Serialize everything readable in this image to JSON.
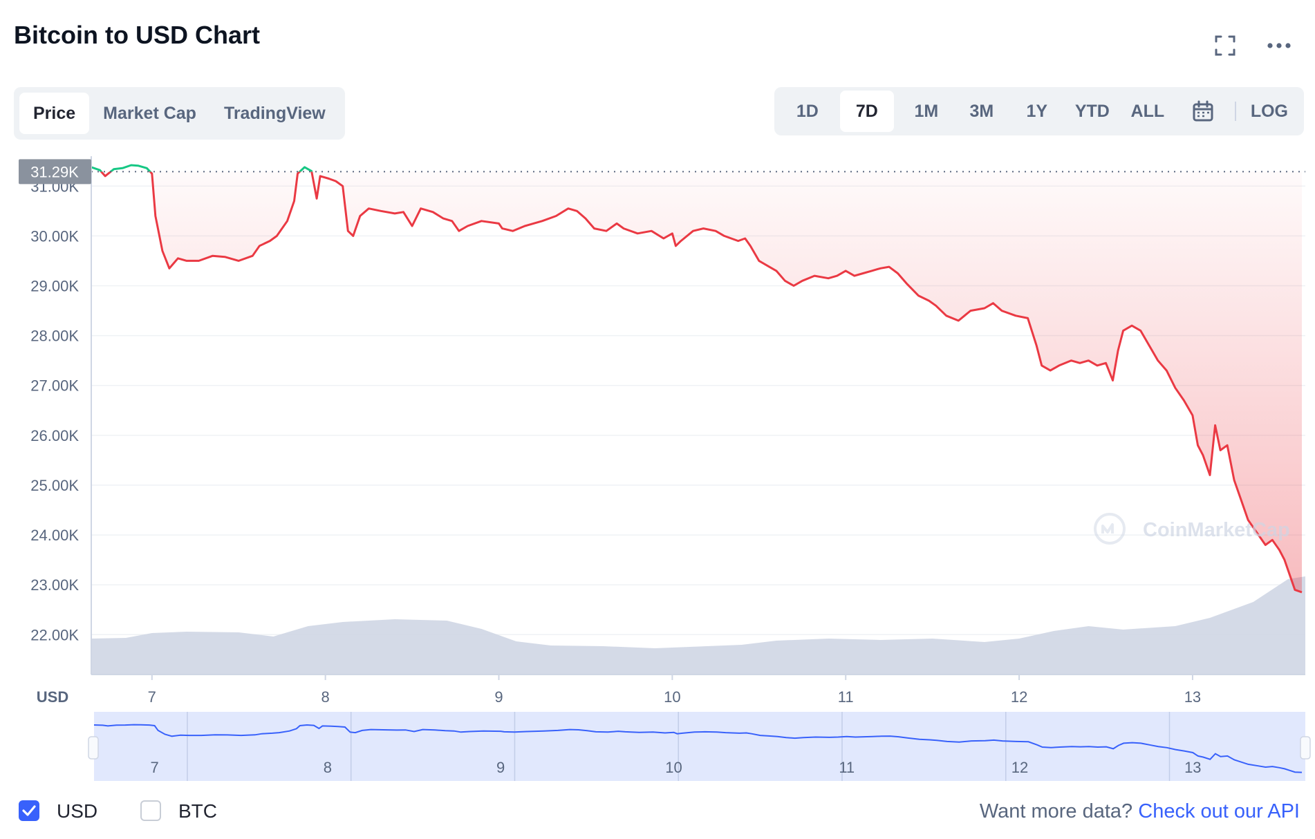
{
  "header": {
    "title": "Bitcoin to USD Chart",
    "fullscreen_icon": "fullscreen-icon",
    "more_icon": "more-horizontal-icon"
  },
  "view_tabs": [
    {
      "label": "Price",
      "active": true
    },
    {
      "label": "Market Cap",
      "active": false
    },
    {
      "label": "TradingView",
      "active": false
    }
  ],
  "range_buttons": [
    {
      "label": "1D",
      "active": false
    },
    {
      "label": "7D",
      "active": true
    },
    {
      "label": "1M",
      "active": false
    },
    {
      "label": "3M",
      "active": false
    },
    {
      "label": "1Y",
      "active": false
    },
    {
      "label": "YTD",
      "active": false
    },
    {
      "label": "ALL",
      "active": false
    }
  ],
  "calendar_icon": "calendar-icon",
  "log_label": "LOG",
  "chart_data": {
    "type": "line",
    "title": "",
    "currency_label": "USD",
    "ylabel": "",
    "ylim": [
      21200,
      31600
    ],
    "y_ticks": [
      "22.00K",
      "23.00K",
      "24.00K",
      "25.00K",
      "26.00K",
      "27.00K",
      "28.00K",
      "29.00K",
      "30.00K",
      "31.00K"
    ],
    "y_tick_values": [
      22000,
      23000,
      24000,
      25000,
      26000,
      27000,
      28000,
      29000,
      30000,
      31000
    ],
    "x_ticks": [
      "7",
      "8",
      "9",
      "10",
      "11",
      "12",
      "13"
    ],
    "x_tick_values": [
      7,
      8,
      9,
      10,
      11,
      12,
      13
    ],
    "xlim": [
      6.65,
      13.65
    ],
    "reference_value": 31290,
    "reference_label": "31.29K",
    "grid": true,
    "colors": {
      "above": "#16c784",
      "below": "#ea3943",
      "volume": "#cfd6e4",
      "navigator": "#3861fb",
      "navigator_fill": "#e1e8fd",
      "axis_text": "#58667e"
    },
    "series": [
      {
        "values": [
          [
            6.65,
            31380
          ],
          [
            6.7,
            31320
          ],
          [
            6.73,
            31200
          ],
          [
            6.78,
            31340
          ],
          [
            6.83,
            31360
          ],
          [
            6.88,
            31420
          ],
          [
            6.92,
            31410
          ],
          [
            6.97,
            31360
          ],
          [
            7.0,
            31250
          ],
          [
            7.02,
            30400
          ],
          [
            7.06,
            29700
          ],
          [
            7.1,
            29350
          ],
          [
            7.15,
            29550
          ],
          [
            7.2,
            29500
          ],
          [
            7.27,
            29500
          ],
          [
            7.35,
            29600
          ],
          [
            7.42,
            29580
          ],
          [
            7.5,
            29500
          ],
          [
            7.58,
            29600
          ],
          [
            7.62,
            29800
          ],
          [
            7.68,
            29900
          ],
          [
            7.72,
            30000
          ],
          [
            7.78,
            30300
          ],
          [
            7.82,
            30700
          ],
          [
            7.84,
            31250
          ],
          [
            7.88,
            31380
          ],
          [
            7.92,
            31300
          ],
          [
            7.95,
            30750
          ],
          [
            7.97,
            31200
          ],
          [
            8.02,
            31150
          ],
          [
            8.06,
            31100
          ],
          [
            8.1,
            31000
          ],
          [
            8.13,
            30100
          ],
          [
            8.16,
            30000
          ],
          [
            8.2,
            30400
          ],
          [
            8.25,
            30550
          ],
          [
            8.32,
            30500
          ],
          [
            8.4,
            30450
          ],
          [
            8.45,
            30480
          ],
          [
            8.5,
            30200
          ],
          [
            8.55,
            30550
          ],
          [
            8.62,
            30480
          ],
          [
            8.68,
            30350
          ],
          [
            8.73,
            30300
          ],
          [
            8.77,
            30100
          ],
          [
            8.82,
            30200
          ],
          [
            8.9,
            30300
          ],
          [
            9.0,
            30250
          ],
          [
            9.02,
            30150
          ],
          [
            9.08,
            30100
          ],
          [
            9.15,
            30200
          ],
          [
            9.25,
            30300
          ],
          [
            9.33,
            30400
          ],
          [
            9.4,
            30550
          ],
          [
            9.45,
            30500
          ],
          [
            9.5,
            30350
          ],
          [
            9.55,
            30150
          ],
          [
            9.62,
            30100
          ],
          [
            9.68,
            30250
          ],
          [
            9.72,
            30150
          ],
          [
            9.8,
            30050
          ],
          [
            9.88,
            30100
          ],
          [
            9.95,
            29950
          ],
          [
            10.0,
            30050
          ],
          [
            10.02,
            29800
          ],
          [
            10.05,
            29900
          ],
          [
            10.12,
            30100
          ],
          [
            10.18,
            30150
          ],
          [
            10.25,
            30100
          ],
          [
            10.3,
            30000
          ],
          [
            10.38,
            29900
          ],
          [
            10.42,
            29950
          ],
          [
            10.45,
            29800
          ],
          [
            10.5,
            29500
          ],
          [
            10.55,
            29400
          ],
          [
            10.6,
            29300
          ],
          [
            10.65,
            29100
          ],
          [
            10.7,
            29000
          ],
          [
            10.75,
            29100
          ],
          [
            10.82,
            29200
          ],
          [
            10.9,
            29150
          ],
          [
            10.95,
            29200
          ],
          [
            11.0,
            29300
          ],
          [
            11.05,
            29200
          ],
          [
            11.1,
            29250
          ],
          [
            11.15,
            29300
          ],
          [
            11.2,
            29350
          ],
          [
            11.25,
            29380
          ],
          [
            11.3,
            29250
          ],
          [
            11.35,
            29050
          ],
          [
            11.42,
            28800
          ],
          [
            11.48,
            28700
          ],
          [
            11.52,
            28600
          ],
          [
            11.58,
            28400
          ],
          [
            11.65,
            28300
          ],
          [
            11.72,
            28500
          ],
          [
            11.8,
            28550
          ],
          [
            11.85,
            28650
          ],
          [
            11.9,
            28500
          ],
          [
            11.98,
            28400
          ],
          [
            12.05,
            28350
          ],
          [
            12.1,
            27800
          ],
          [
            12.13,
            27400
          ],
          [
            12.18,
            27300
          ],
          [
            12.23,
            27400
          ],
          [
            12.3,
            27500
          ],
          [
            12.35,
            27450
          ],
          [
            12.4,
            27500
          ],
          [
            12.45,
            27400
          ],
          [
            12.5,
            27450
          ],
          [
            12.54,
            27100
          ],
          [
            12.57,
            27700
          ],
          [
            12.6,
            28100
          ],
          [
            12.65,
            28200
          ],
          [
            12.7,
            28100
          ],
          [
            12.75,
            27800
          ],
          [
            12.8,
            27500
          ],
          [
            12.85,
            27300
          ],
          [
            12.9,
            26950
          ],
          [
            12.95,
            26700
          ],
          [
            13.0,
            26400
          ],
          [
            13.03,
            25800
          ],
          [
            13.06,
            25600
          ],
          [
            13.1,
            25200
          ],
          [
            13.13,
            26200
          ],
          [
            13.16,
            25700
          ],
          [
            13.2,
            25800
          ],
          [
            13.24,
            25100
          ],
          [
            13.28,
            24700
          ],
          [
            13.32,
            24300
          ],
          [
            13.38,
            24000
          ],
          [
            13.42,
            23800
          ],
          [
            13.46,
            23900
          ],
          [
            13.5,
            23700
          ],
          [
            13.53,
            23500
          ],
          [
            13.56,
            23200
          ],
          [
            13.59,
            22900
          ],
          [
            13.63,
            22850
          ]
        ]
      }
    ],
    "volume_profile": [
      [
        6.65,
        0.52
      ],
      [
        6.85,
        0.53
      ],
      [
        7.0,
        0.6
      ],
      [
        7.2,
        0.62
      ],
      [
        7.5,
        0.61
      ],
      [
        7.7,
        0.55
      ],
      [
        7.9,
        0.7
      ],
      [
        8.1,
        0.76
      ],
      [
        8.4,
        0.8
      ],
      [
        8.7,
        0.78
      ],
      [
        8.9,
        0.66
      ],
      [
        9.1,
        0.48
      ],
      [
        9.3,
        0.42
      ],
      [
        9.6,
        0.41
      ],
      [
        9.9,
        0.38
      ],
      [
        10.1,
        0.4
      ],
      [
        10.4,
        0.43
      ],
      [
        10.6,
        0.49
      ],
      [
        10.9,
        0.52
      ],
      [
        11.2,
        0.5
      ],
      [
        11.5,
        0.52
      ],
      [
        11.8,
        0.47
      ],
      [
        12.0,
        0.52
      ],
      [
        12.2,
        0.63
      ],
      [
        12.4,
        0.7
      ],
      [
        12.6,
        0.65
      ],
      [
        12.9,
        0.7
      ],
      [
        13.1,
        0.82
      ],
      [
        13.35,
        1.05
      ],
      [
        13.55,
        1.38
      ],
      [
        13.65,
        1.42
      ]
    ],
    "watermark": "CoinMarketCap"
  },
  "currency_toggles": [
    {
      "label": "USD",
      "checked": true
    },
    {
      "label": "BTC",
      "checked": false
    }
  ],
  "footer": {
    "api_prompt": "Want more data?",
    "api_link": "Check out our API"
  }
}
